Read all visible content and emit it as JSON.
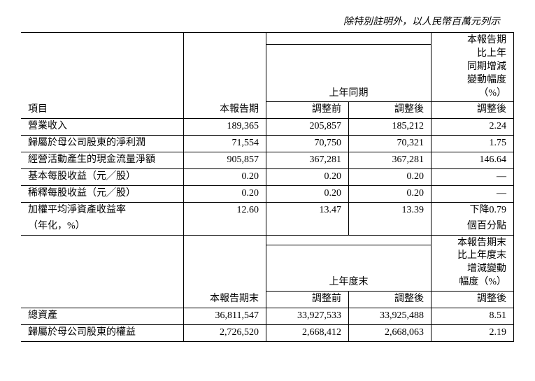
{
  "caption": "除特別註明外，以人民幣百萬元列示",
  "table1": {
    "header": {
      "item": "項目",
      "current": "本報告期",
      "prior_period": "上年同期",
      "before_adj": "調整前",
      "after_adj": "調整後",
      "change_col_lines": [
        "本報告期",
        "比上年",
        "同期增減",
        "變動幅度",
        "（%）"
      ],
      "change_sub": "調整後"
    },
    "rows": [
      {
        "label": "營業收入",
        "cur": "189,365",
        "pre": "205,857",
        "post": "185,212",
        "chg": "2.24"
      },
      {
        "label": "歸屬於母公司股東的淨利潤",
        "cur": "71,554",
        "pre": "70,750",
        "post": "70,321",
        "chg": "1.75"
      },
      {
        "label": "經營活動產生的現金流量淨額",
        "cur": "905,857",
        "pre": "367,281",
        "post": "367,281",
        "chg": "146.64"
      },
      {
        "label": "基本每股收益（元╱股）",
        "cur": "0.20",
        "pre": "0.20",
        "post": "0.20",
        "chg": "—"
      },
      {
        "label": "稀釋每股收益（元╱股）",
        "cur": "0.20",
        "pre": "0.20",
        "post": "0.20",
        "chg": "—"
      },
      {
        "label": "加權平均淨資產收益率",
        "cur": "12.60",
        "pre": "13.47",
        "post": "13.39",
        "chg": "下降0.79"
      },
      {
        "label": "（年化，%）",
        "cur": "",
        "pre": "",
        "post": "",
        "chg": "個百分點"
      }
    ]
  },
  "table2": {
    "header": {
      "current": "本報告期末",
      "prior_period": "上年度末",
      "before_adj": "調整前",
      "after_adj": "調整後",
      "change_col_lines": [
        "本報告期末",
        "比上年度末",
        "增減變動",
        "幅度（%）"
      ],
      "change_sub": "調整後"
    },
    "rows": [
      {
        "label": "總資產",
        "cur": "36,811,547",
        "pre": "33,927,533",
        "post": "33,925,488",
        "chg": "8.51"
      },
      {
        "label": "歸屬於母公司股東的權益",
        "cur": "2,726,520",
        "pre": "2,668,412",
        "post": "2,668,063",
        "chg": "2.19"
      }
    ]
  },
  "style": {
    "font_size_pt": 11,
    "colors": {
      "text": "#000000",
      "border": "#000000",
      "background": "#ffffff"
    }
  }
}
